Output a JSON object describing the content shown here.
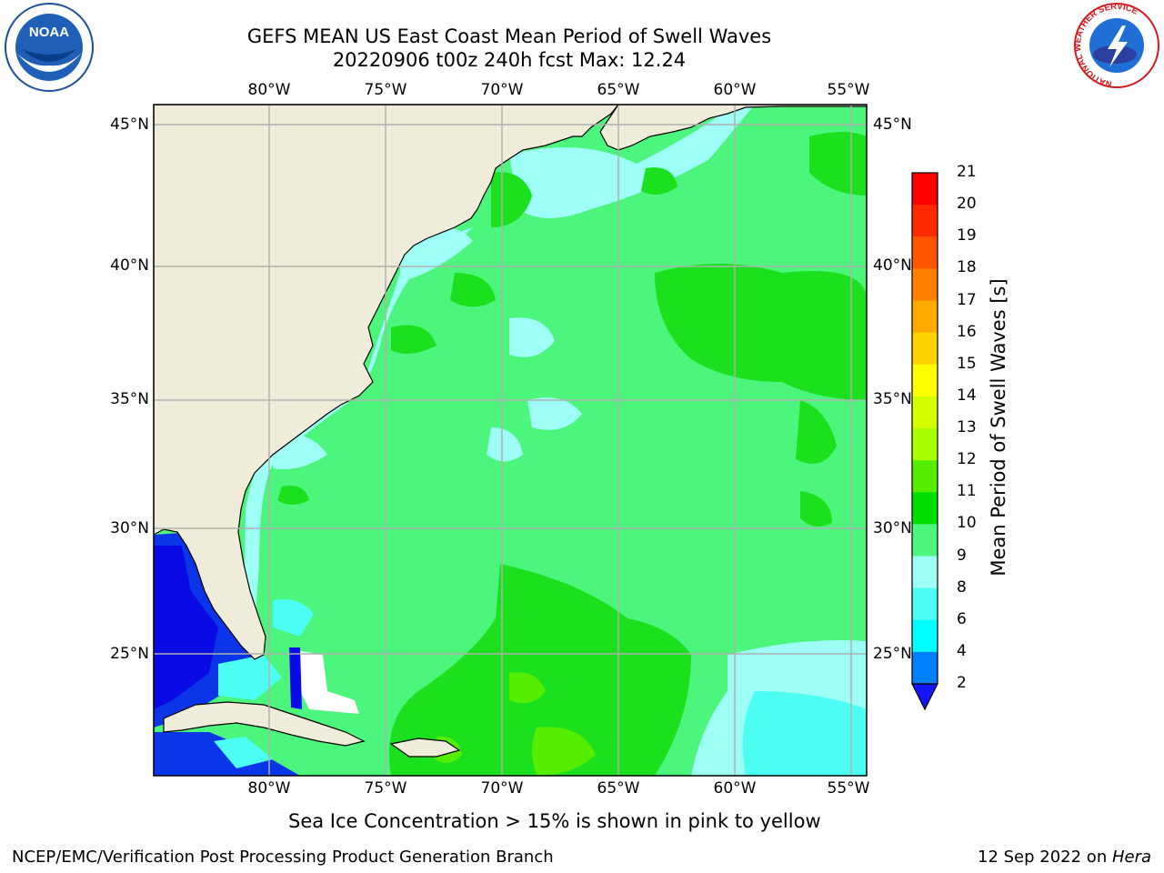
{
  "title": {
    "line1": "GEFS MEAN US East Coast Mean Period of Swell Waves",
    "line2": "20220906 t00z 240h fcst   Max: 12.24"
  },
  "logos": {
    "noaa": "NOAA",
    "nws_text": "NATIONAL WEATHER SERVICE"
  },
  "map": {
    "lon_labels": [
      "80°W",
      "75°W",
      "70°W",
      "65°W",
      "60°W",
      "55°W"
    ],
    "lat_labels_left": [
      "45°N",
      "40°N",
      "35°N",
      "30°N",
      "25°N"
    ],
    "lat_labels_right": [
      "45°N",
      "40°N",
      "35°N",
      "30°N",
      "25°N"
    ],
    "colors": {
      "land": "#efedd9",
      "sea_main": "#4cf57c",
      "sea_light": "#9efff7",
      "sea_green": "#1ae01e",
      "sea_cyan": "#4dfff2",
      "sea_blue": "#0a36e8",
      "sea_deep": "#0a0ae6",
      "grid": "#b0b0b0"
    }
  },
  "colorbar": {
    "label": "Mean Period of Swell Waves [s]",
    "ticks": [
      "21",
      "20",
      "19",
      "18",
      "17",
      "16",
      "15",
      "14",
      "13",
      "12",
      "11",
      "10",
      "9",
      "8",
      "6",
      "4",
      "2"
    ],
    "colors": [
      "#ff0000",
      "#ff2a00",
      "#ff5500",
      "#ff8000",
      "#ffaa00",
      "#ffd400",
      "#ffff00",
      "#d4ff00",
      "#aaff00",
      "#55ee00",
      "#00dd00",
      "#4cf57c",
      "#9efff7",
      "#4dfff2",
      "#00ffff",
      "#0080ff"
    ],
    "extend_color": "#1414ff"
  },
  "note": "Sea Ice Concentration > 15% is shown in pink to yellow",
  "footer": {
    "left": "NCEP/EMC/Verification Post Processing Product Generation Branch",
    "date": "12 Sep 2022 on ",
    "host": "Hera"
  }
}
